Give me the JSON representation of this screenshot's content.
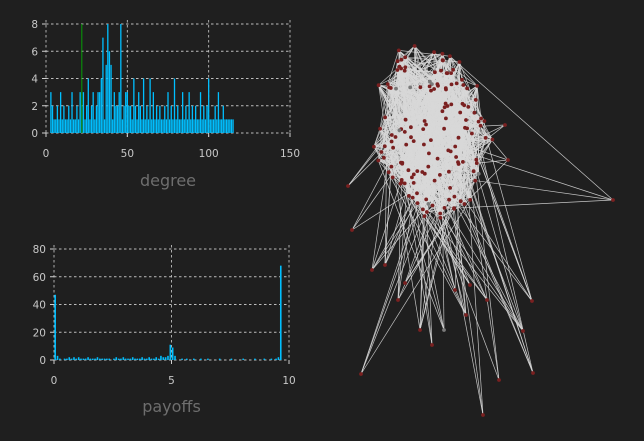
{
  "figure": {
    "background": "#1f1f1f"
  },
  "chart_data": [
    {
      "type": "bar",
      "name": "degree-histogram",
      "xlabel": "degree",
      "ylabel": "",
      "xlim": [
        0,
        150
      ],
      "ylim": [
        0,
        8
      ],
      "xticks": [
        0,
        50,
        100,
        150
      ],
      "yticks": [
        0,
        2,
        4,
        6,
        8
      ],
      "grid": true,
      "bar_color": "#00bfff",
      "marker_line": {
        "x": 22,
        "color": "#0a8a0a"
      },
      "x": [
        3,
        4,
        5,
        6,
        7,
        8,
        9,
        10,
        11,
        12,
        13,
        14,
        15,
        16,
        17,
        18,
        19,
        20,
        21,
        22,
        23,
        24,
        25,
        26,
        27,
        28,
        29,
        30,
        31,
        32,
        33,
        34,
        35,
        36,
        37,
        38,
        39,
        40,
        41,
        42,
        43,
        44,
        45,
        46,
        47,
        48,
        49,
        50,
        51,
        52,
        53,
        54,
        55,
        56,
        57,
        58,
        59,
        60,
        61,
        62,
        63,
        64,
        65,
        66,
        67,
        68,
        69,
        70,
        71,
        72,
        73,
        74,
        75,
        76,
        77,
        78,
        79,
        80,
        81,
        82,
        83,
        84,
        85,
        86,
        87,
        88,
        89,
        90,
        91,
        92,
        93,
        94,
        95,
        96,
        97,
        98,
        99,
        100,
        101,
        102,
        103,
        104,
        105,
        106,
        107,
        108,
        109,
        110,
        111,
        112,
        113,
        114,
        115
      ],
      "values": [
        3,
        2,
        1,
        1,
        2,
        1,
        3,
        1,
        2,
        1,
        1,
        2,
        1,
        3,
        1,
        1,
        2,
        1,
        3,
        2,
        3,
        1,
        2,
        4,
        1,
        2,
        3,
        1,
        2,
        3,
        3,
        4,
        7,
        1,
        5,
        8,
        6,
        5,
        1,
        3,
        2,
        2,
        3,
        8,
        1,
        2,
        3,
        3,
        2,
        2,
        1,
        4,
        2,
        1,
        3,
        2,
        1,
        4,
        1,
        2,
        1,
        4,
        1,
        3,
        1,
        2,
        1,
        2,
        1,
        1,
        2,
        1,
        3,
        1,
        2,
        1,
        4,
        1,
        2,
        1,
        1,
        3,
        1,
        2,
        1,
        3,
        1,
        2,
        1,
        2,
        1,
        1,
        3,
        1,
        2,
        1,
        2,
        4,
        1,
        1,
        1,
        2,
        1,
        3,
        1,
        1,
        2,
        1,
        1,
        1,
        1,
        1,
        1
      ]
    },
    {
      "type": "bar",
      "name": "payoffs-histogram",
      "xlabel": "payoffs",
      "ylabel": "",
      "xlim": [
        0,
        10
      ],
      "ylim": [
        0,
        80
      ],
      "xticks": [
        0,
        5,
        10
      ],
      "yticks": [
        0,
        20,
        40,
        60,
        80
      ],
      "grid": true,
      "bar_color": "#00bfff",
      "x": [
        0.05,
        0.15,
        0.25,
        0.45,
        0.55,
        0.65,
        0.75,
        0.85,
        0.95,
        1.05,
        1.15,
        1.25,
        1.35,
        1.45,
        1.55,
        1.65,
        1.75,
        1.85,
        1.95,
        2.05,
        2.15,
        2.25,
        2.35,
        2.55,
        2.65,
        2.75,
        2.85,
        2.95,
        3.05,
        3.15,
        3.25,
        3.35,
        3.45,
        3.55,
        3.65,
        3.75,
        3.85,
        3.95,
        4.05,
        4.15,
        4.25,
        4.35,
        4.45,
        4.55,
        4.65,
        4.75,
        4.85,
        4.95,
        5.05,
        5.15,
        5.45,
        5.65,
        5.95,
        6.25,
        6.55,
        7.05,
        7.55,
        8.05,
        8.55,
        8.95,
        9.25,
        9.45,
        9.55,
        9.65
      ],
      "values": [
        47,
        3,
        1,
        1,
        1,
        2,
        1,
        2,
        1,
        2,
        1,
        1,
        1,
        2,
        1,
        1,
        1,
        2,
        1,
        1,
        1,
        1,
        1,
        1,
        2,
        1,
        1,
        2,
        1,
        1,
        1,
        2,
        1,
        1,
        1,
        2,
        1,
        1,
        2,
        1,
        1,
        2,
        1,
        3,
        2,
        2,
        3,
        11,
        9,
        3,
        1,
        1,
        1,
        1,
        1,
        1,
        1,
        1,
        1,
        1,
        1,
        1,
        2,
        68
      ]
    }
  ],
  "network": {
    "type": "network",
    "edge_color": "#d8d8d8",
    "node_color": "#7a2020",
    "node_count": 170
  }
}
